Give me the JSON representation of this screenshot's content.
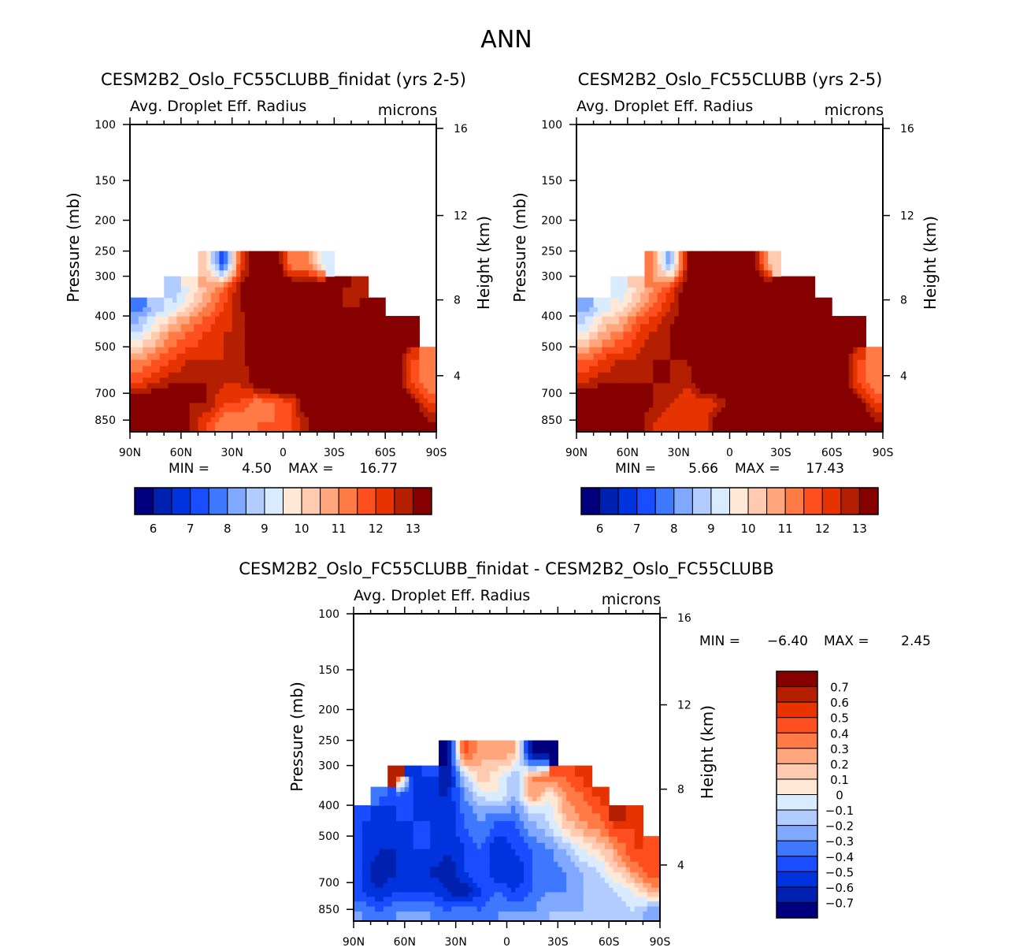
{
  "chart_data": {
    "type": "heatmap",
    "title": "ANN",
    "lat_ticks": [
      "90N",
      "60N",
      "30N",
      "0",
      "30S",
      "60S",
      "90S"
    ],
    "lat_tick_values": [
      90,
      60,
      30,
      0,
      -30,
      -60,
      -90
    ],
    "pressure_ticks": [
      100,
      150,
      200,
      250,
      300,
      400,
      500,
      700,
      850
    ],
    "pressure_range": [
      100,
      925
    ],
    "height_ticks": [
      4,
      8,
      12,
      16
    ],
    "ylabel": "Pressure (mb)",
    "ylabel_right": "Height (km)",
    "lat_bin_edges": [
      90,
      80,
      70,
      60,
      50,
      40,
      30,
      20,
      10,
      0,
      -10,
      -20,
      -30,
      -40,
      -50,
      -60,
      -70,
      -80,
      -90
    ],
    "pressure_bin_edges": [
      925,
      800,
      700,
      600,
      500,
      400,
      350,
      300,
      250
    ],
    "panels": [
      {
        "title": "CESM2B2_Oslo_FC55CLUBB_finidat (yrs 2-5)",
        "variable": "Avg. Droplet Eff. Radius",
        "units": "microns",
        "min_label": "MIN =",
        "min_value": "4.50",
        "max_label": "MAX =",
        "max_value": "16.77",
        "levels": [
          6,
          6.5,
          7,
          7.5,
          8,
          8.5,
          9,
          9.5,
          10,
          10.5,
          11,
          11.5,
          12,
          12.5,
          13
        ],
        "colorbar_labels": [
          "6",
          "7",
          "8",
          "9",
          "10",
          "11",
          "12",
          "13"
        ],
        "values": [
          [
            14,
            14,
            14,
            13,
            12,
            11,
            11,
            11.5,
            11.5,
            12,
            13,
            14,
            14,
            14,
            14,
            14,
            14,
            13
          ],
          [
            14,
            14,
            14,
            13,
            13,
            12,
            12,
            11,
            11.5,
            12,
            14,
            14,
            14,
            14,
            14,
            14,
            13.5,
            12
          ],
          [
            12,
            12.5,
            13,
            13,
            13,
            12.5,
            12.5,
            13.5,
            14,
            14,
            14,
            14,
            14,
            14,
            14,
            14,
            12,
            11
          ],
          [
            11,
            11.5,
            12,
            12.5,
            12.5,
            12.5,
            12.5,
            14,
            14,
            14,
            14,
            14,
            14,
            14,
            14,
            14,
            12,
            11
          ],
          [
            9,
            10,
            11,
            11.5,
            12,
            12.5,
            12.5,
            14,
            14,
            14,
            14,
            14,
            14,
            14,
            14,
            14,
            14,
            null
          ],
          [
            7.5,
            8.5,
            9,
            10,
            11,
            12,
            13,
            14,
            14,
            14,
            14,
            14,
            13,
            13,
            14,
            null,
            null,
            null
          ],
          [
            null,
            null,
            8.5,
            9.5,
            10.5,
            11.5,
            13,
            14,
            14,
            14,
            14,
            14,
            13,
            12.5,
            null,
            null,
            null,
            null
          ],
          [
            null,
            null,
            null,
            null,
            10,
            7,
            12,
            14,
            14,
            11,
            11,
            9,
            null,
            null,
            null,
            null,
            null,
            null
          ]
        ]
      },
      {
        "title": "CESM2B2_Oslo_FC55CLUBB (yrs 2-5)",
        "variable": "Avg. Droplet Eff. Radius",
        "units": "microns",
        "min_label": "MIN =",
        "min_value": "5.66",
        "max_label": "MAX =",
        "max_value": "17.43",
        "levels": [
          6,
          6.5,
          7,
          7.5,
          8,
          8.5,
          9,
          9.5,
          10,
          10.5,
          11,
          11.5,
          12,
          12.5,
          13
        ],
        "colorbar_labels": [
          "6",
          "7",
          "8",
          "9",
          "10",
          "11",
          "12",
          "13"
        ],
        "values": [
          [
            14,
            14,
            14,
            13.5,
            12.5,
            12,
            12,
            12,
            14,
            14,
            14,
            14,
            14,
            14,
            14,
            14,
            14,
            13
          ],
          [
            14,
            14,
            14,
            13.5,
            13,
            12.5,
            12,
            12,
            12.5,
            14,
            14,
            14,
            14,
            14,
            14,
            14,
            13.5,
            12
          ],
          [
            12.5,
            13,
            13,
            13,
            13,
            13,
            12.5,
            14,
            14,
            14,
            14,
            14,
            14,
            14,
            14,
            14,
            12,
            11
          ],
          [
            11.5,
            12,
            12.5,
            12.5,
            13,
            13,
            13,
            14,
            14,
            14,
            14,
            14,
            14,
            14,
            14,
            14,
            12,
            11
          ],
          [
            9.5,
            10.5,
            11,
            12,
            12.5,
            13,
            13.5,
            14,
            14,
            14,
            14,
            14,
            14,
            14,
            14,
            14,
            14,
            null
          ],
          [
            8,
            9,
            9.5,
            10.5,
            11.5,
            12.5,
            13.5,
            14,
            14,
            14,
            14,
            14,
            13,
            13,
            14,
            null,
            null,
            null
          ],
          [
            null,
            null,
            9,
            10,
            11,
            12,
            13.5,
            14,
            14,
            14,
            14,
            14,
            13,
            13,
            null,
            null,
            null,
            null
          ],
          [
            null,
            null,
            null,
            null,
            11,
            8,
            13,
            14,
            14,
            14,
            13,
            10,
            null,
            null,
            null,
            null,
            null,
            null
          ]
        ]
      },
      {
        "title": "CESM2B2_Oslo_FC55CLUBB_finidat - CESM2B2_Oslo_FC55CLUBB",
        "variable": "Avg. Droplet Eff. Radius",
        "units": "microns",
        "min_label": "MIN =",
        "min_value": "-6.40",
        "max_label": "MAX =",
        "max_value": "2.45",
        "levels": [
          -0.7,
          -0.6,
          -0.5,
          -0.4,
          -0.3,
          -0.2,
          -0.1,
          0,
          0.1,
          0.2,
          0.3,
          0.4,
          0.5,
          0.6,
          0.7
        ],
        "colorbar_labels": [
          "0.7",
          "0.6",
          "0.5",
          "0.4",
          "0.3",
          "0.2",
          "0.1",
          "0",
          "-0.1",
          "-0.2",
          "-0.3",
          "-0.4",
          "-0.5",
          "-0.6",
          "-0.7"
        ],
        "values": [
          [
            -0.3,
            -0.4,
            -0.3,
            -0.3,
            -0.3,
            -0.4,
            -0.3,
            -0.4,
            -0.3,
            -0.3,
            -0.3,
            -0.2,
            -0.2,
            -0.2,
            -0.2,
            -0.2,
            -0.1,
            -0.3
          ],
          [
            -0.5,
            -0.6,
            -0.5,
            -0.5,
            -0.5,
            -0.6,
            -0.7,
            -0.5,
            -0.4,
            -0.5,
            -0.4,
            -0.3,
            -0.3,
            -0.2,
            -0.2,
            -0.1,
            0.0,
            0.2
          ],
          [
            -0.5,
            -0.7,
            -0.6,
            -0.5,
            -0.6,
            -0.7,
            -0.5,
            -0.4,
            -0.6,
            -0.6,
            -0.4,
            -0.4,
            -0.3,
            -0.2,
            -0.1,
            0.1,
            0.3,
            0.5
          ],
          [
            -0.5,
            -0.6,
            -0.6,
            -0.5,
            -0.5,
            -0.6,
            -0.5,
            -0.4,
            -0.6,
            -0.5,
            -0.4,
            -0.3,
            -0.2,
            0.0,
            0.1,
            0.3,
            0.5,
            0.4
          ],
          [
            -0.5,
            -0.6,
            -0.5,
            -0.5,
            -0.5,
            -0.6,
            -0.4,
            -0.3,
            -0.4,
            -0.4,
            -0.2,
            -0.1,
            0.2,
            0.3,
            0.4,
            0.6,
            0.5,
            null
          ],
          [
            null,
            -0.4,
            -0.5,
            -0.5,
            -0.6,
            -0.6,
            -0.3,
            -0.1,
            0.0,
            -0.2,
            0.3,
            0.0,
            0.3,
            0.4,
            0.5,
            null,
            null,
            null
          ],
          [
            null,
            null,
            0.6,
            -0.6,
            -0.5,
            -0.7,
            -0.2,
            0.2,
            0.0,
            -0.2,
            0.3,
            0.4,
            0.4,
            0.5,
            null,
            null,
            null,
            null
          ],
          [
            null,
            null,
            null,
            null,
            null,
            -0.8,
            0.5,
            0.2,
            0.3,
            0.2,
            -0.8,
            -0.8,
            null,
            null,
            null,
            null,
            null,
            null
          ]
        ]
      }
    ],
    "colors": [
      "#00007f",
      "#0020b0",
      "#0033dd",
      "#1a4dff",
      "#3d78ff",
      "#80a8ff",
      "#b3ccff",
      "#d9ebff",
      "#ffe8d6",
      "#ffcab0",
      "#ffa67d",
      "#ff7a45",
      "#ff4f1f",
      "#e63300",
      "#b31f00",
      "#870000"
    ]
  }
}
